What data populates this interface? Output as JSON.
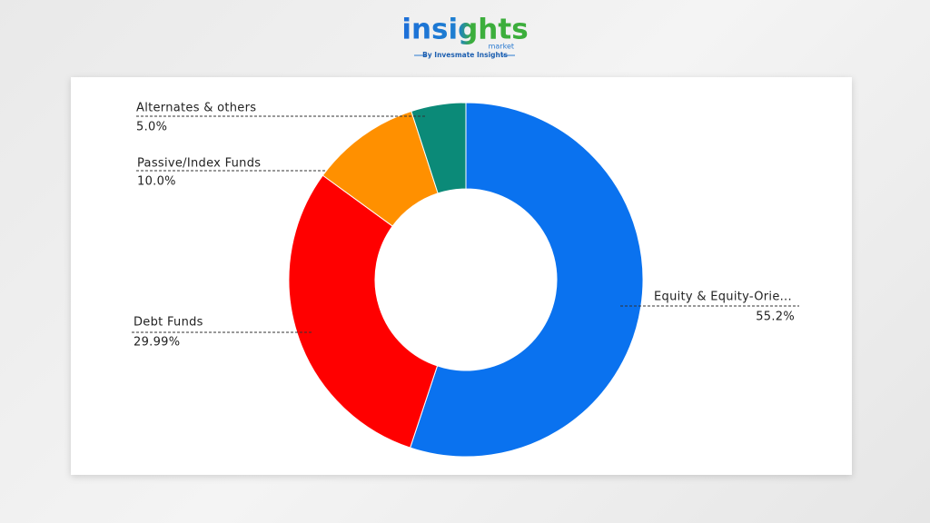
{
  "brand": {
    "name": "insights",
    "sub": "market",
    "tagline": "By Invesmate Insights"
  },
  "chart_data": {
    "type": "donut",
    "categories": [
      "Equity & Equity-Orie...",
      "Debt Funds",
      "Passive/Index Funds",
      "Alternates & others"
    ],
    "values": [
      55.2,
      29.99,
      10.0,
      5.0
    ],
    "value_labels": [
      "55.2%",
      "29.99%",
      "10.0%",
      "5.0%"
    ],
    "colors": [
      "#0a72ef",
      "#ff0000",
      "#ff9000",
      "#0b8a78"
    ]
  }
}
